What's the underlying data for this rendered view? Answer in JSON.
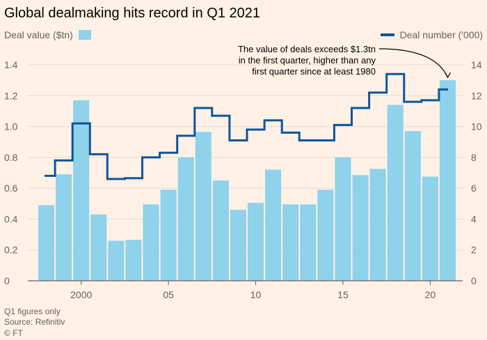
{
  "title": "Global dealmaking hits record in Q1 2021",
  "legend": {
    "bar_label": "Deal value ($tn)",
    "line_label": "Deal number ('000)"
  },
  "footer": {
    "note": "Q1 figures only",
    "source": "Source: Refinitiv",
    "credit": "© FT"
  },
  "colors": {
    "background": "#FFF1E5",
    "bar": "#8ED2EB",
    "line": "#0F5499",
    "grid": "#E3DAD1",
    "axis": "#66605C"
  },
  "chart_data": {
    "type": "bar",
    "title": "Global dealmaking hits record in Q1 2021",
    "x": [
      1998,
      1999,
      2000,
      2001,
      2002,
      2003,
      2004,
      2005,
      2006,
      2007,
      2008,
      2009,
      2010,
      2011,
      2012,
      2013,
      2014,
      2015,
      2016,
      2017,
      2018,
      2019,
      2020,
      2021
    ],
    "x_tick_values": [
      2000,
      2005,
      2010,
      2015,
      2020
    ],
    "x_tick_labels": [
      "2000",
      "05",
      "10",
      "15",
      "20"
    ],
    "series": [
      {
        "name": "Deal value ($tn)",
        "type": "bar",
        "axis": "left",
        "values": [
          0.49,
          0.69,
          1.17,
          0.43,
          0.26,
          0.265,
          0.495,
          0.59,
          0.8,
          0.965,
          0.65,
          0.46,
          0.505,
          0.72,
          0.495,
          0.495,
          0.59,
          0.8,
          0.685,
          0.725,
          1.14,
          0.97,
          0.675,
          1.3
        ]
      },
      {
        "name": "Deal number ('000)",
        "type": "step-line",
        "axis": "right",
        "values": [
          6.8,
          7.8,
          10.2,
          8.2,
          6.6,
          6.65,
          8.0,
          8.3,
          9.4,
          11.2,
          10.7,
          9.1,
          9.8,
          10.4,
          9.6,
          9.1,
          9.1,
          10.1,
          11.2,
          12.2,
          13.4,
          11.6,
          11.7,
          12.4
        ]
      }
    ],
    "left_axis": {
      "label": "Deal value ($tn)",
      "ylim": [
        0,
        1.4
      ],
      "ticks": [
        0,
        0.2,
        0.4,
        0.6,
        0.8,
        1.0,
        1.2,
        1.4
      ],
      "tick_labels": [
        "0",
        "0.2",
        "0.4",
        "0.6",
        "0.8",
        "1.0",
        "1.2",
        "1.4"
      ]
    },
    "right_axis": {
      "label": "Deal number ('000)",
      "ylim": [
        0,
        14
      ],
      "ticks": [
        0,
        2,
        4,
        6,
        8,
        10,
        12,
        14
      ],
      "tick_labels": [
        "0",
        "2",
        "4",
        "6",
        "8",
        "10",
        "12",
        "14"
      ]
    },
    "grid": true,
    "legend_placement": "top",
    "annotation": {
      "lines": [
        "The value of deals exceeds $1.3tn",
        "in the first quarter, higher than any",
        "first quarter since at least 1980"
      ],
      "target_year": 2021
    }
  }
}
